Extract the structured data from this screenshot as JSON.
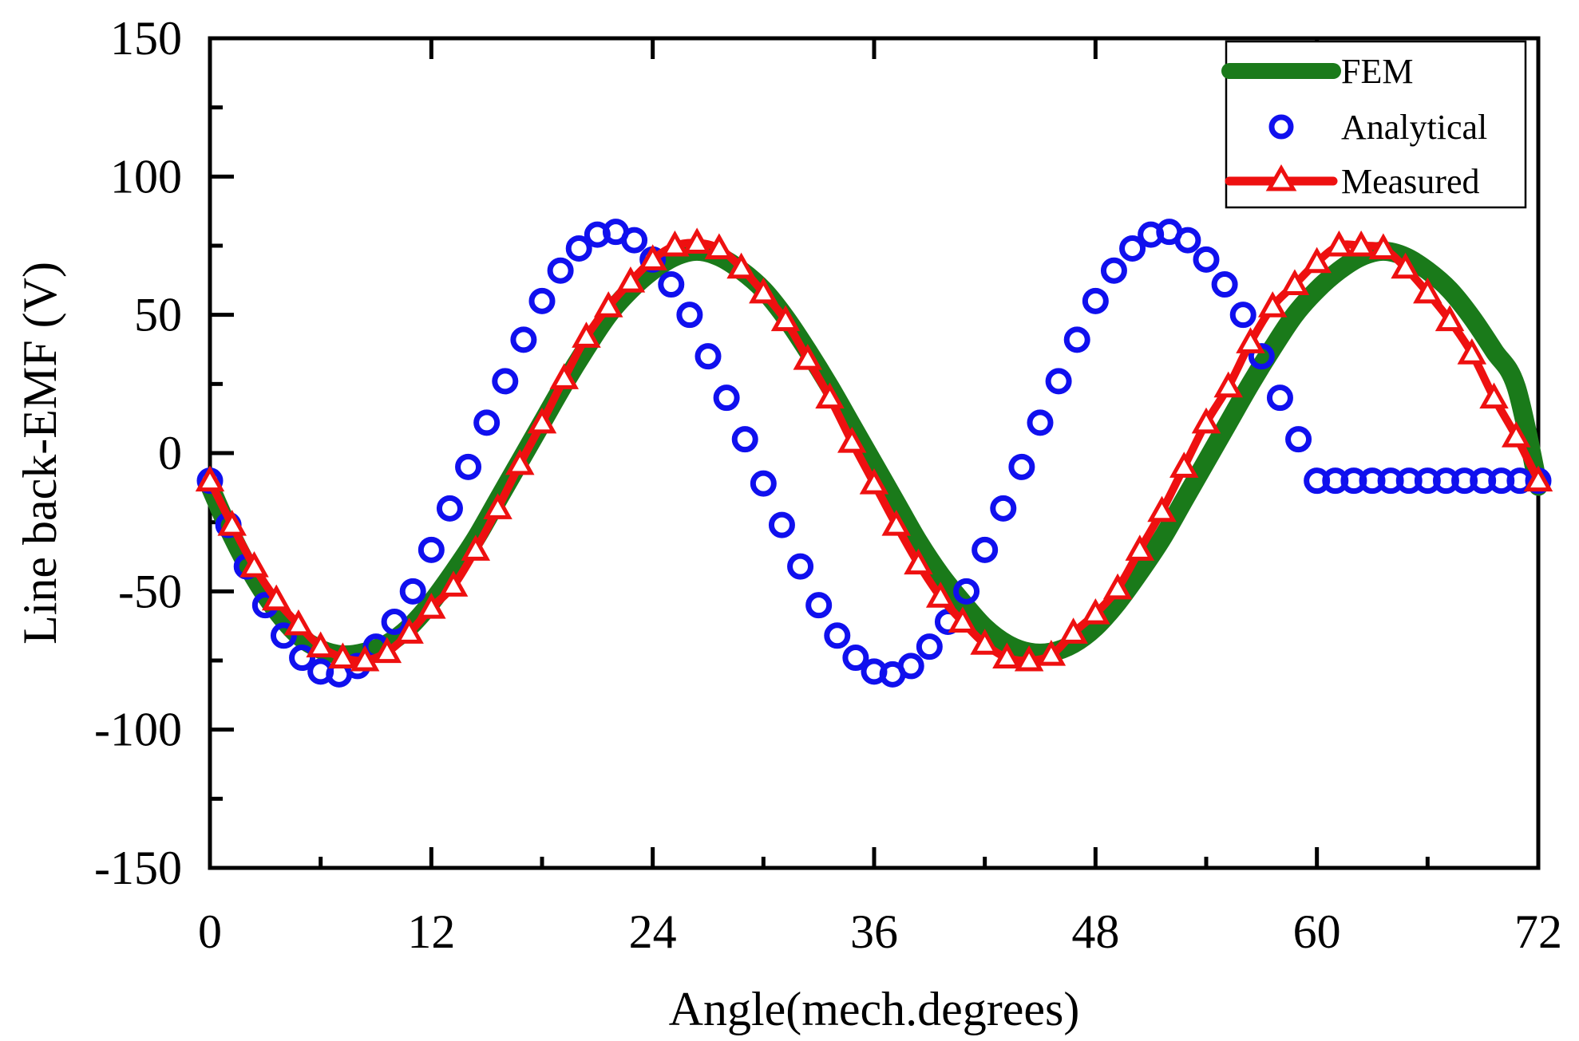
{
  "chart_data": {
    "type": "line",
    "title": "",
    "xlabel": "Angle(mech.degrees)",
    "ylabel": "Line back-EMF (V)",
    "xlim": [
      0,
      72
    ],
    "ylim": [
      -150,
      150
    ],
    "xticks": [
      0,
      12,
      24,
      36,
      48,
      60,
      72
    ],
    "yticks": [
      -150,
      -100,
      -50,
      0,
      50,
      100,
      150
    ],
    "xtick_labels": [
      "0",
      "12",
      "24",
      "36",
      "48",
      "60",
      "72"
    ],
    "ytick_labels": [
      "-150",
      "-100",
      "-50",
      "0",
      "50",
      "100",
      "150"
    ],
    "legend_position": "top-right",
    "grid": false,
    "series": [
      {
        "name": "FEM",
        "style": "line",
        "color": "#1a7a1a",
        "x": [
          0,
          1.2,
          2.4,
          3.6,
          4.8,
          6,
          7.2,
          8.4,
          9.6,
          10.8,
          12,
          13.2,
          14.4,
          15.6,
          16.8,
          18,
          19.2,
          20.4,
          21.6,
          22.8,
          24,
          25.2,
          26.4,
          27.6,
          28.8,
          30,
          31.2,
          32.4,
          33.6,
          34.8,
          36,
          37.2,
          38.4,
          39.6,
          40.8,
          42,
          43.2,
          44.4,
          45.6,
          46.8,
          48,
          49.2,
          50.4,
          51.6,
          52.8,
          54,
          55.2,
          56.4,
          57.6,
          58.8,
          60,
          61.2,
          62.4,
          63.6,
          64.8,
          66,
          67.2,
          68.4,
          69.6,
          70.8,
          72
        ],
        "values": [
          -12,
          -30,
          -45,
          -57,
          -66,
          -71,
          -73,
          -72,
          -69,
          -63,
          -54,
          -43,
          -31,
          -17,
          -3,
          11,
          25,
          38,
          50,
          59,
          66,
          71,
          73,
          71,
          66,
          59,
          49,
          37,
          24,
          10,
          -4,
          -18,
          -32,
          -44,
          -54,
          -63,
          -69,
          -72,
          -72,
          -69,
          -63,
          -54,
          -43,
          -31,
          -17,
          -3,
          11,
          25,
          38,
          50,
          59,
          66,
          71,
          73,
          71,
          66,
          59,
          49,
          37,
          24,
          -12
        ]
      },
      {
        "name": "Analytical",
        "style": "circle",
        "color": "#1010ee",
        "x": [
          0,
          1,
          2,
          3,
          4,
          5,
          6,
          7,
          8,
          9,
          10,
          11,
          12,
          13,
          14,
          15,
          16,
          17,
          18,
          19,
          20,
          21,
          22,
          23,
          24,
          25,
          26,
          27,
          28,
          29,
          30,
          31,
          32,
          33,
          34,
          35,
          36,
          37,
          38,
          39,
          40,
          41,
          42,
          43,
          44,
          45,
          46,
          47,
          48,
          49,
          50,
          51,
          52,
          53,
          54,
          55,
          56,
          57,
          58,
          59,
          60,
          61,
          62,
          63,
          64,
          65,
          66,
          67,
          68,
          69,
          70,
          71,
          72
        ],
        "values": [
          -10,
          -26,
          -41,
          -55,
          -66,
          -74,
          -79,
          -80,
          -77,
          -70,
          -61,
          -50,
          -35,
          -20,
          -5,
          11,
          26,
          41,
          55,
          66,
          74,
          79,
          80,
          77,
          70,
          61,
          50,
          35,
          20,
          5,
          -11,
          -26,
          -41,
          -55,
          -66,
          -74,
          -79,
          -80,
          -77,
          -70,
          -61,
          -50,
          -35,
          -20,
          -5,
          11,
          26,
          41,
          55,
          66,
          74,
          79,
          80,
          77,
          70,
          61,
          50,
          35,
          20,
          5,
          -10,
          -10,
          -10,
          -10,
          -10,
          -10,
          -10,
          -10,
          -10,
          -10,
          -10,
          -10,
          -10
        ]
      },
      {
        "name": "Measured",
        "style": "line-triangle",
        "color": "#ee1010",
        "x": [
          0,
          1.2,
          2.4,
          3.6,
          4.8,
          6,
          7.2,
          8.4,
          9.6,
          10.8,
          12,
          13.2,
          14.4,
          15.6,
          16.8,
          18,
          19.2,
          20.4,
          21.6,
          22.8,
          24,
          25.2,
          26.4,
          27.6,
          28.8,
          30,
          31.2,
          32.4,
          33.6,
          34.8,
          36,
          37.2,
          38.4,
          39.6,
          40.8,
          42,
          43.2,
          44.4,
          45.6,
          46.8,
          48,
          49.2,
          50.4,
          51.6,
          52.8,
          54,
          55.2,
          56.4,
          57.6,
          58.8,
          60,
          61.2,
          62.4,
          63.6,
          64.8,
          66,
          67.2,
          68.4,
          69.6,
          70.8,
          72
        ],
        "values": [
          -10,
          -26,
          -41,
          -53,
          -62,
          -70,
          -74,
          -75,
          -72,
          -65,
          -56,
          -48,
          -35,
          -20,
          -4,
          11,
          27,
          42,
          53,
          62,
          70,
          75,
          76,
          74,
          67,
          58,
          48,
          34,
          20,
          4,
          -11,
          -26,
          -40,
          -52,
          -61,
          -69,
          -74,
          -75,
          -73,
          -65,
          -58,
          -49,
          -35,
          -21,
          -5,
          11,
          24,
          40,
          53,
          61,
          69,
          75,
          75,
          74,
          67,
          58,
          48,
          36,
          20,
          6,
          -10
        ]
      }
    ]
  }
}
